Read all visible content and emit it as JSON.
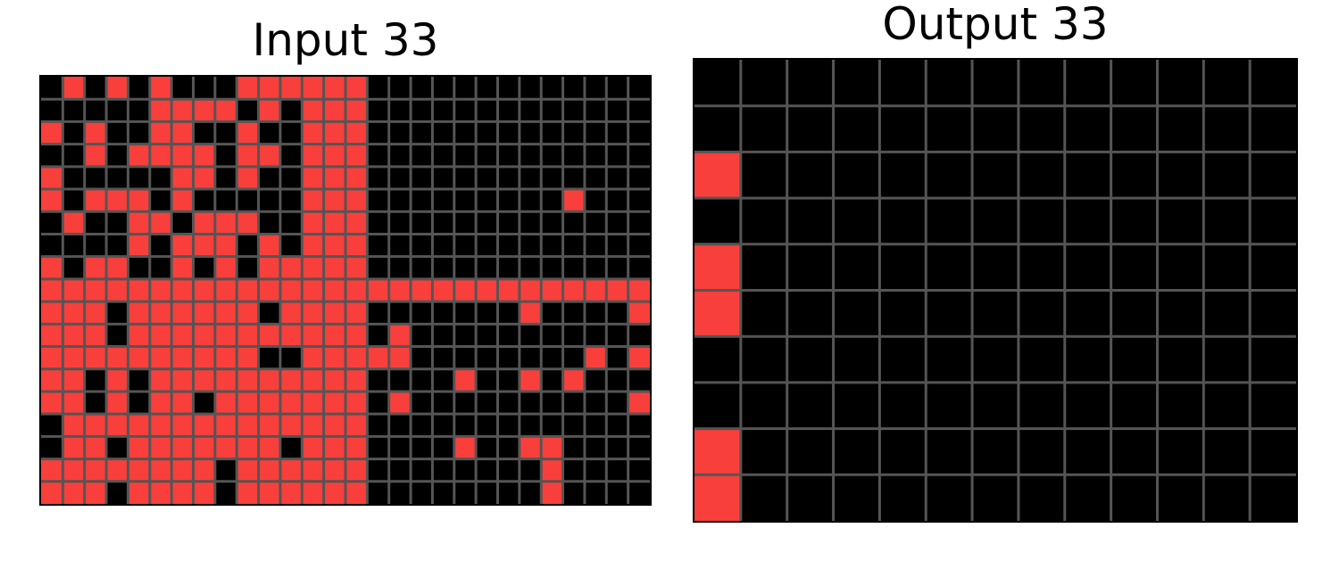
{
  "colors": {
    "bg": "#000000",
    "fill": "#f93f3b",
    "grid": "#555555",
    "border": "#000000"
  },
  "input": {
    "title": "Input 33",
    "rows": [
      "0101010001111110000000000000",
      "0000011110101110000000000000",
      "1010011001001110000000000000",
      "0010111101101110000000000000",
      "1000001101001110000000000000",
      "1011101000001110000000001000",
      "0100110111001110000000000000",
      "0000101110101110000000000000",
      "1011001010111110000000000000",
      "1111111111111111111111111111",
      "1110111111011110000000100001",
      "1110111111111110100000000000",
      "1111111111001111100000000101",
      "1101011111111110000100101000",
      "1101011011111110100000000001",
      "0111111111111110000000000000",
      "0110111111101110000100110000",
      "1111111101111110000000010000",
      "1110111101111110000000010000"
    ]
  },
  "output": {
    "title": "Output 33",
    "rows": [
      "0000000000000",
      "0000000000000",
      "1000000000000",
      "0000000000000",
      "1000000000000",
      "1000000000000",
      "0000000000000",
      "0000000000000",
      "1000000000000",
      "1000000000000"
    ]
  }
}
